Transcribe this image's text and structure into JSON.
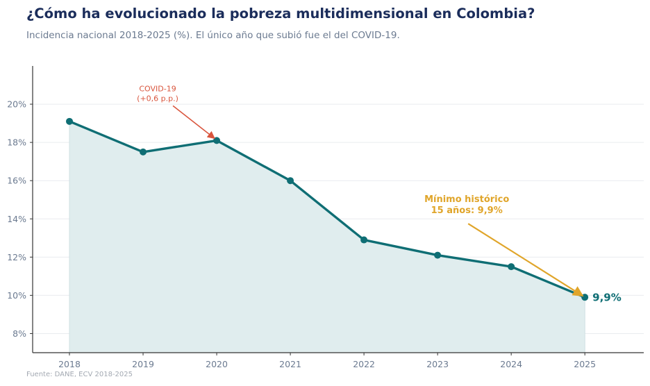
{
  "header": {
    "title": "¿Cómo ha evolucionado la pobreza multidimensional en Colombia?",
    "subtitle": "Incidencia nacional 2018-2025 (%). El único año que subió fue el del COVID-19."
  },
  "footer": {
    "source": "Fuente: DANE, ECV 2018-2025"
  },
  "colors": {
    "line": "#0f6e74",
    "area": "#e0edee",
    "covid": "#d9553d",
    "minimum": "#e0a52a",
    "grid": "#e9ecef",
    "axis": "#333333"
  },
  "chart_data": {
    "type": "line",
    "title": "¿Cómo ha evolucionado la pobreza multidimensional en Colombia?",
    "subtitle": "Incidencia nacional 2018-2025 (%). El único año que subió fue el del COVID-19.",
    "xlabel": "",
    "ylabel": "",
    "x": [
      2018,
      2019,
      2020,
      2021,
      2022,
      2023,
      2024,
      2025
    ],
    "series": [
      {
        "values": [
          19.1,
          17.5,
          18.1,
          16.0,
          12.9,
          12.1,
          11.5,
          9.9
        ]
      }
    ],
    "xlim": [
      2017.5,
      2025.8
    ],
    "ylim": [
      7.0,
      22.0
    ],
    "x_tick_labels": [
      "2018",
      "2019",
      "2020",
      "2021",
      "2022",
      "2023",
      "2024",
      "2025"
    ],
    "y_ticks": [
      8,
      10,
      12,
      14,
      16,
      18,
      20
    ],
    "y_tick_labels": [
      "8%",
      "10%",
      "12%",
      "14%",
      "16%",
      "18%",
      "20%"
    ],
    "grid": "horizontal",
    "area_fill": true,
    "annotations": [
      {
        "id": "covid",
        "lines": [
          "COVID-19",
          "(+0,6 p.p.)"
        ],
        "x": 2020,
        "y": 18.1
      },
      {
        "id": "minimo",
        "lines": [
          "Mínimo histórico",
          "15 años: 9,9%"
        ],
        "x": 2025,
        "y": 9.9
      }
    ],
    "end_label": "9,9%"
  }
}
